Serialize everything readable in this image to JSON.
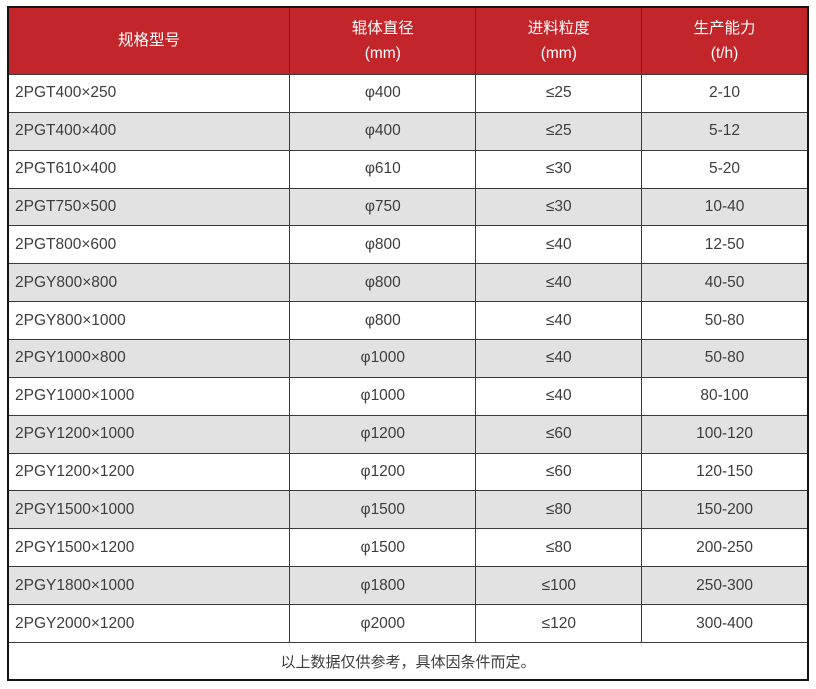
{
  "colors": {
    "header_bg": "#c2262a",
    "header_text": "#ffffff",
    "row_bg": "#ffffff",
    "row_alt_bg": "#e2e2e2",
    "grid_border": "#3a3a3a",
    "outer_border": "#141414",
    "body_text": "#3d3d3d"
  },
  "table": {
    "headers": [
      {
        "title": "规格型号",
        "unit": ""
      },
      {
        "title": "辊体直径",
        "unit": "(mm)"
      },
      {
        "title": "进料粒度",
        "unit": "(mm)"
      },
      {
        "title": "生产能力",
        "unit": "(t/h)"
      }
    ],
    "rows": [
      [
        "2PGT400×250",
        "φ400",
        "≤25",
        "2-10"
      ],
      [
        "2PGT400×400",
        "φ400",
        "≤25",
        "5-12"
      ],
      [
        "2PGT610×400",
        "φ610",
        "≤30",
        "5-20"
      ],
      [
        "2PGT750×500",
        "φ750",
        "≤30",
        "10-40"
      ],
      [
        "2PGT800×600",
        "φ800",
        "≤40",
        "12-50"
      ],
      [
        "2PGY800×800",
        "φ800",
        "≤40",
        "40-50"
      ],
      [
        "2PGY800×1000",
        "φ800",
        "≤40",
        "50-80"
      ],
      [
        "2PGY1000×800",
        "φ1000",
        "≤40",
        "50-80"
      ],
      [
        "2PGY1000×1000",
        "φ1000",
        "≤40",
        "80-100"
      ],
      [
        "2PGY1200×1000",
        "φ1200",
        "≤60",
        "100-120"
      ],
      [
        "2PGY1200×1200",
        "φ1200",
        "≤60",
        "120-150"
      ],
      [
        "2PGY1500×1000",
        "φ1500",
        "≤80",
        "150-200"
      ],
      [
        "2PGY1500×1200",
        "φ1500",
        "≤80",
        "200-250"
      ],
      [
        "2PGY1800×1000",
        "φ1800",
        "≤100",
        "250-300"
      ],
      [
        "2PGY2000×1200",
        "φ2000",
        "≤120",
        "300-400"
      ]
    ],
    "footer_note": "以上数据仅供参考，具体因条件而定。"
  },
  "chart_data": {
    "type": "table",
    "columns": [
      "规格型号",
      "辊体直径 (mm)",
      "进料粒度 (mm)",
      "生产能力 (t/h)"
    ],
    "rows": [
      [
        "2PGT400×250",
        "φ400",
        "≤25",
        "2-10"
      ],
      [
        "2PGT400×400",
        "φ400",
        "≤25",
        "5-12"
      ],
      [
        "2PGT610×400",
        "φ610",
        "≤30",
        "5-20"
      ],
      [
        "2PGT750×500",
        "φ750",
        "≤30",
        "10-40"
      ],
      [
        "2PGT800×600",
        "φ800",
        "≤40",
        "12-50"
      ],
      [
        "2PGY800×800",
        "φ800",
        "≤40",
        "40-50"
      ],
      [
        "2PGY800×1000",
        "φ800",
        "≤40",
        "50-80"
      ],
      [
        "2PGY1000×800",
        "φ1000",
        "≤40",
        "50-80"
      ],
      [
        "2PGY1000×1000",
        "φ1000",
        "≤40",
        "80-100"
      ],
      [
        "2PGY1200×1000",
        "φ1200",
        "≤60",
        "100-120"
      ],
      [
        "2PGY1200×1200",
        "φ1200",
        "≤60",
        "120-150"
      ],
      [
        "2PGY1500×1000",
        "φ1500",
        "≤80",
        "150-200"
      ],
      [
        "2PGY1500×1200",
        "φ1500",
        "≤80",
        "200-250"
      ],
      [
        "2PGY1800×1000",
        "φ1800",
        "≤100",
        "250-300"
      ],
      [
        "2PGY2000×1200",
        "φ2000",
        "≤120",
        "300-400"
      ]
    ],
    "footnote": "以上数据仅供参考，具体因条件而定。"
  }
}
